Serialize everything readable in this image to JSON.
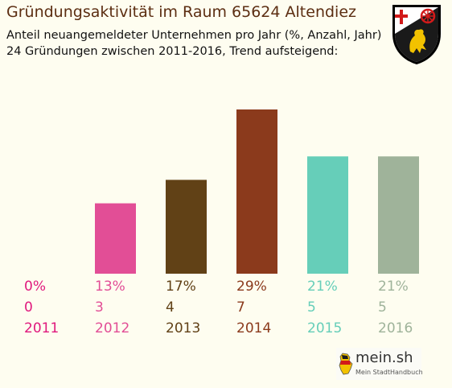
{
  "header": {
    "title": "Gründungsaktivität im Raum 65624 Altendiez",
    "subtitle_line1": "Anteil neuangemeldeter Unternehmen pro Jahr (%, Anzahl, Jahr)",
    "subtitle_line2": "24 Gründungen zwischen 2011-2016, Trend aufsteigend:"
  },
  "crest": {
    "icon": "coat-of-arms-icon"
  },
  "brand": {
    "name": "mein.sh",
    "tagline": "Mein StadtHandbuch",
    "icon": "germany-map-icon"
  },
  "chart_data": {
    "type": "bar",
    "title": "Gründungsaktivität im Raum 65624 Altendiez",
    "categories": [
      "2011",
      "2012",
      "2013",
      "2014",
      "2015",
      "2016"
    ],
    "values": [
      0,
      3,
      4,
      7,
      5,
      5
    ],
    "percent_labels": [
      "0%",
      "13%",
      "17%",
      "29%",
      "21%",
      "21%"
    ],
    "count_labels": [
      "0",
      "3",
      "4",
      "7",
      "5",
      "5"
    ],
    "colors": [
      "#e0197d",
      "#e24e96",
      "#614116",
      "#8b3a1c",
      "#66ceb9",
      "#9fb39a"
    ],
    "ylim": [
      0,
      7
    ],
    "grid": false,
    "legend": "none"
  }
}
